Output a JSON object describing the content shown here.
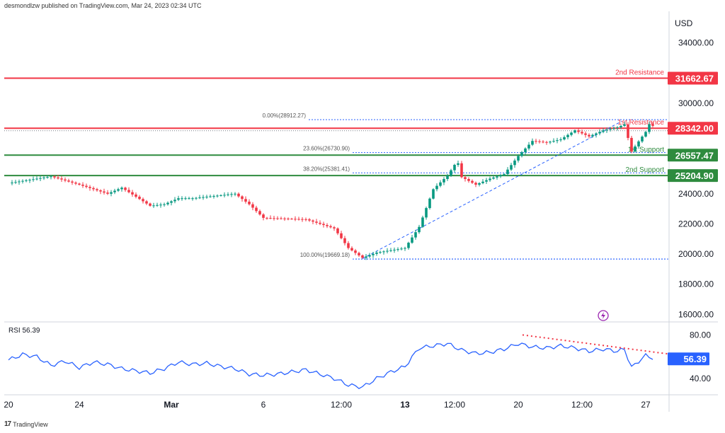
{
  "header": {
    "publisher": "desmondlzw published on TradingView.com, Mar 24, 2023 02:34 UTC"
  },
  "footer": {
    "brand": "TradingView",
    "logo": "17"
  },
  "chart_data": [
    {
      "type": "candlestick",
      "unit": "USD",
      "ylim": [
        15500,
        36000
      ],
      "y_ticks": [
        16000,
        18000,
        20000,
        22000,
        24000,
        26000,
        28000,
        30000,
        32000,
        34000
      ],
      "y_tick_labels": [
        "16000.00",
        "18000.00",
        "20000.00",
        "22000.00",
        "24000.00",
        "",
        "",
        "30000.00",
        "",
        "34000.00"
      ],
      "grid": false,
      "price_points": [
        [
          0,
          24700
        ],
        [
          3,
          25150
        ],
        [
          5,
          24600
        ],
        [
          7,
          24000
        ],
        [
          8,
          24400
        ],
        [
          9,
          23800
        ],
        [
          10,
          23200
        ],
        [
          11,
          23300
        ],
        [
          12,
          23700
        ],
        [
          13,
          23700
        ],
        [
          15,
          23900
        ],
        [
          16,
          24000
        ],
        [
          17,
          23300
        ],
        [
          18,
          22400
        ],
        [
          21,
          22300
        ],
        [
          22,
          22000
        ],
        [
          23,
          21700
        ],
        [
          24,
          20400
        ],
        [
          25,
          19750
        ],
        [
          26,
          20100
        ],
        [
          28,
          20400
        ],
        [
          29,
          21800
        ],
        [
          30,
          24300
        ],
        [
          31,
          25200
        ],
        [
          31.7,
          26200
        ],
        [
          32,
          25100
        ],
        [
          33,
          24600
        ],
        [
          34,
          25000
        ],
        [
          35,
          25300
        ],
        [
          36,
          26500
        ],
        [
          37,
          27500
        ],
        [
          38,
          27400
        ],
        [
          39,
          27600
        ],
        [
          40,
          28200
        ],
        [
          41,
          27800
        ],
        [
          42,
          28200
        ],
        [
          43,
          28400
        ],
        [
          43.5,
          28600
        ],
        [
          44,
          26800
        ],
        [
          44.6,
          27600
        ],
        [
          45,
          28100
        ],
        [
          45.3,
          28700
        ],
        [
          45.7,
          28300
        ]
      ],
      "price_levels": [
        {
          "name": "2nd Resistance",
          "value": 31662.67,
          "label": "31662.67",
          "color": "#f23645",
          "kind": "resistance"
        },
        {
          "name": "1st Resistance",
          "value": 28342.0,
          "label": "28342.00",
          "color": "#f23645",
          "kind": "resistance"
        },
        {
          "name": "1st Support",
          "value": 26557.47,
          "label": "26557.47",
          "color": "#2e8b3e",
          "kind": "support"
        },
        {
          "name": "2nd Support",
          "value": 25204.9,
          "label": "25204.90",
          "color": "#2e8b3e",
          "kind": "support"
        }
      ],
      "fibonacci": [
        {
          "label": "0.00%(28912.27)",
          "value": 28912.27
        },
        {
          "label": "23.60%(26730.90)",
          "value": 26730.9
        },
        {
          "label": "38.20%(25381.41)",
          "value": 25381.41
        },
        {
          "label": "100.00%(19669.18)",
          "value": 19669.18
        }
      ],
      "trendline": [
        [
          25,
          19700
        ],
        [
          43.3,
          28800
        ]
      ],
      "reference_line": 28180,
      "colors": {
        "up": "#089981",
        "down": "#f23645",
        "fib": "#2962ff",
        "event": "#9c27b0"
      }
    },
    {
      "type": "line",
      "name": "RSI",
      "value_label": "56.39",
      "ylim": [
        25,
        90
      ],
      "y_ticks": [
        40,
        80
      ],
      "y_tick_labels": [
        "40.00",
        "80.00"
      ],
      "rsi_points": [
        [
          0,
          57
        ],
        [
          1,
          62
        ],
        [
          2,
          60
        ],
        [
          3,
          52
        ],
        [
          4,
          56
        ],
        [
          5,
          50
        ],
        [
          6,
          55
        ],
        [
          7,
          53
        ],
        [
          8,
          49
        ],
        [
          9,
          47
        ],
        [
          10,
          45
        ],
        [
          11,
          49
        ],
        [
          12,
          55
        ],
        [
          13,
          53
        ],
        [
          14,
          54
        ],
        [
          15,
          51
        ],
        [
          16,
          49
        ],
        [
          17,
          44
        ],
        [
          18,
          43
        ],
        [
          19,
          44
        ],
        [
          20,
          46
        ],
        [
          21,
          48
        ],
        [
          22,
          44
        ],
        [
          23,
          40
        ],
        [
          24,
          34
        ],
        [
          25,
          32
        ],
        [
          26,
          40
        ],
        [
          27,
          46
        ],
        [
          28,
          51
        ],
        [
          29,
          68
        ],
        [
          30,
          70
        ],
        [
          31,
          72
        ],
        [
          32,
          66
        ],
        [
          33,
          63
        ],
        [
          34,
          64
        ],
        [
          35,
          67
        ],
        [
          36,
          72
        ],
        [
          37,
          69
        ],
        [
          38,
          68
        ],
        [
          39,
          70
        ],
        [
          40,
          68
        ],
        [
          41,
          65
        ],
        [
          42,
          67
        ],
        [
          43,
          65
        ],
        [
          43.5,
          67
        ],
        [
          44,
          50
        ],
        [
          44.6,
          57
        ],
        [
          45,
          61
        ],
        [
          45.7,
          58
        ]
      ],
      "divergence": [
        [
          36.3,
          80
        ],
        [
          47.5,
          61
        ]
      ],
      "colors": {
        "line": "#2962ff",
        "divergence": "#f23645",
        "badge": "#2962ff"
      }
    }
  ],
  "x_axis": {
    "ticks": [
      {
        "x": 0,
        "label": "20",
        "bold": false
      },
      {
        "x": 5,
        "label": "24",
        "bold": false
      },
      {
        "x": 11.5,
        "label": "Mar",
        "bold": true
      },
      {
        "x": 18,
        "label": "6",
        "bold": false
      },
      {
        "x": 23.5,
        "label": "12:00",
        "bold": false
      },
      {
        "x": 28,
        "label": "13",
        "bold": true
      },
      {
        "x": 31.5,
        "label": "12:00",
        "bold": false
      },
      {
        "x": 36,
        "label": "20",
        "bold": false
      },
      {
        "x": 40.5,
        "label": "12:00",
        "bold": false
      },
      {
        "x": 45,
        "label": "27",
        "bold": false
      }
    ]
  }
}
